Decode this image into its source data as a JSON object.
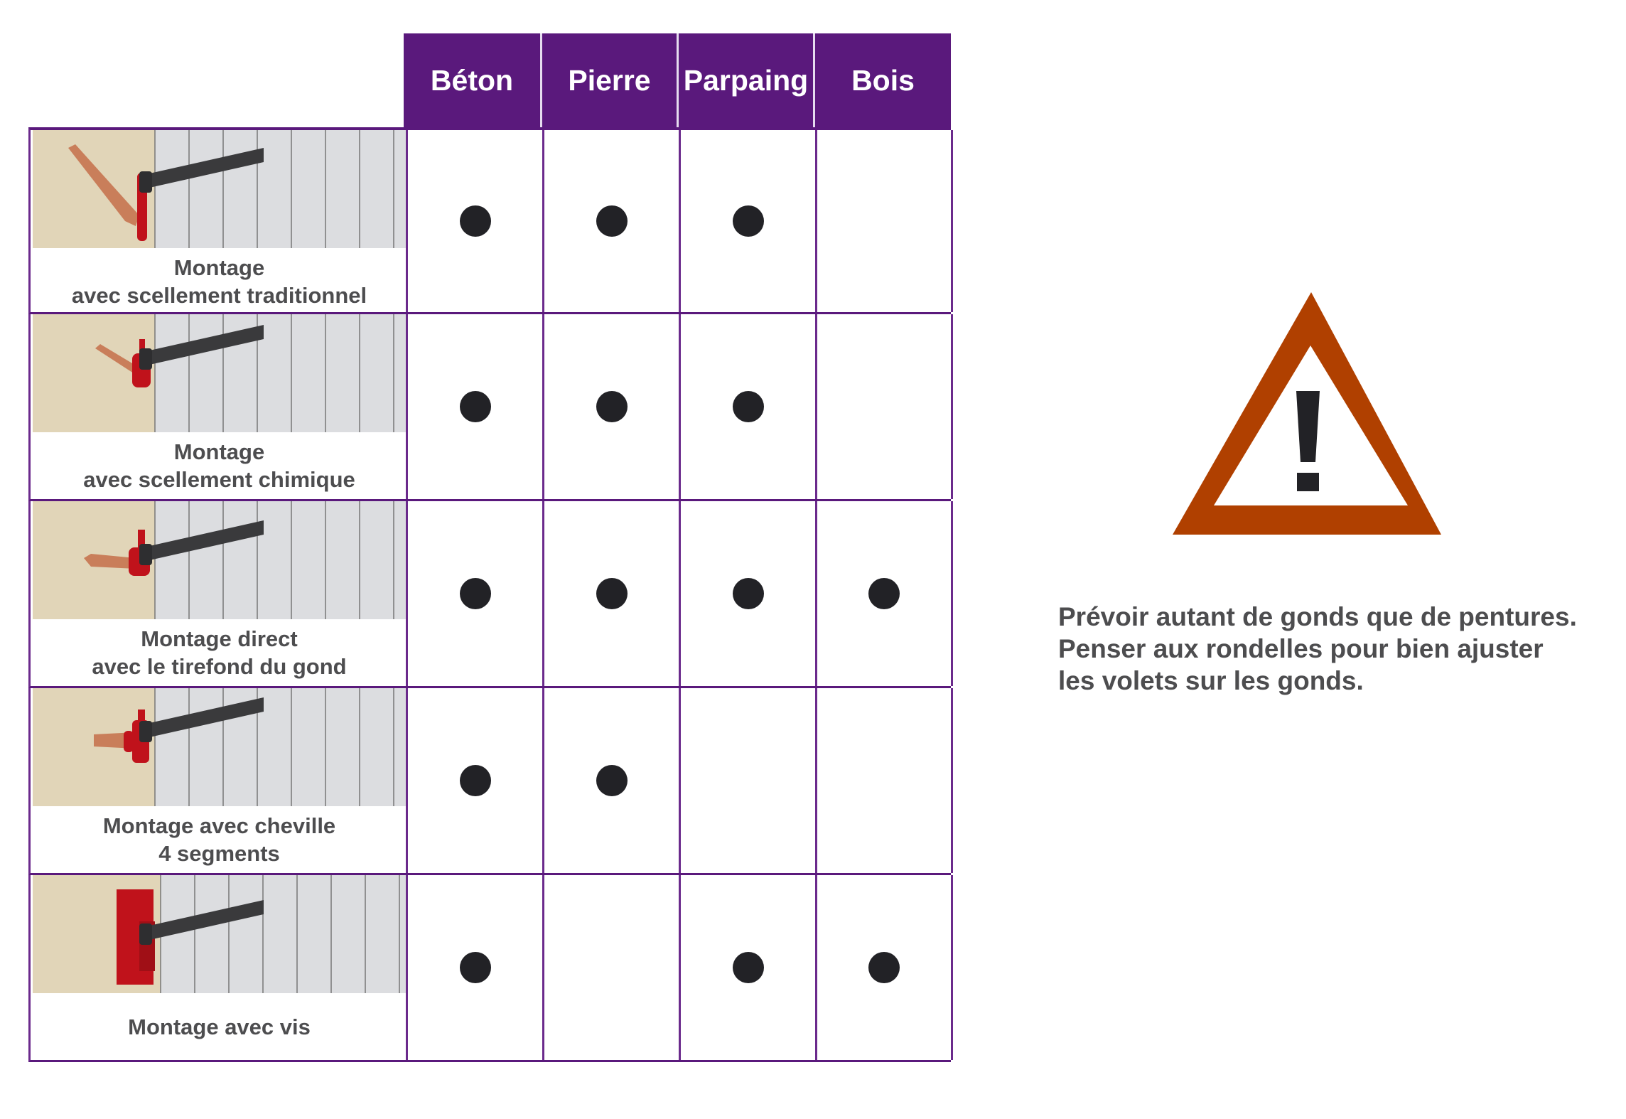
{
  "columns": [
    "Béton",
    "Pierre",
    "Parpaing",
    "Bois"
  ],
  "rows": [
    {
      "label_line1": "Montage",
      "label_line2": "avec scellement traditionnel",
      "supported": [
        true,
        true,
        true,
        false
      ]
    },
    {
      "label_line1": "Montage",
      "label_line2": "avec scellement chimique",
      "supported": [
        true,
        true,
        true,
        false
      ]
    },
    {
      "label_line1": "Montage direct",
      "label_line2": "avec le tirefond du gond",
      "supported": [
        true,
        true,
        true,
        true
      ]
    },
    {
      "label_line1": "Montage avec cheville",
      "label_line2": "4 segments",
      "supported": [
        true,
        true,
        false,
        false
      ]
    },
    {
      "label_line1": "Montage avec vis",
      "label_line2": "",
      "supported": [
        true,
        false,
        true,
        true
      ]
    }
  ],
  "warning": {
    "icon": "warning-triangle-icon",
    "lines": [
      "Prévoir autant de gonds que de pentures.",
      "Penser aux rondelles pour bien ajuster",
      "les volets sur les gonds."
    ]
  },
  "colors": {
    "header": "#5a197c",
    "dot": "#222226",
    "warning": "#b04000",
    "text": "#4d4d4f"
  }
}
